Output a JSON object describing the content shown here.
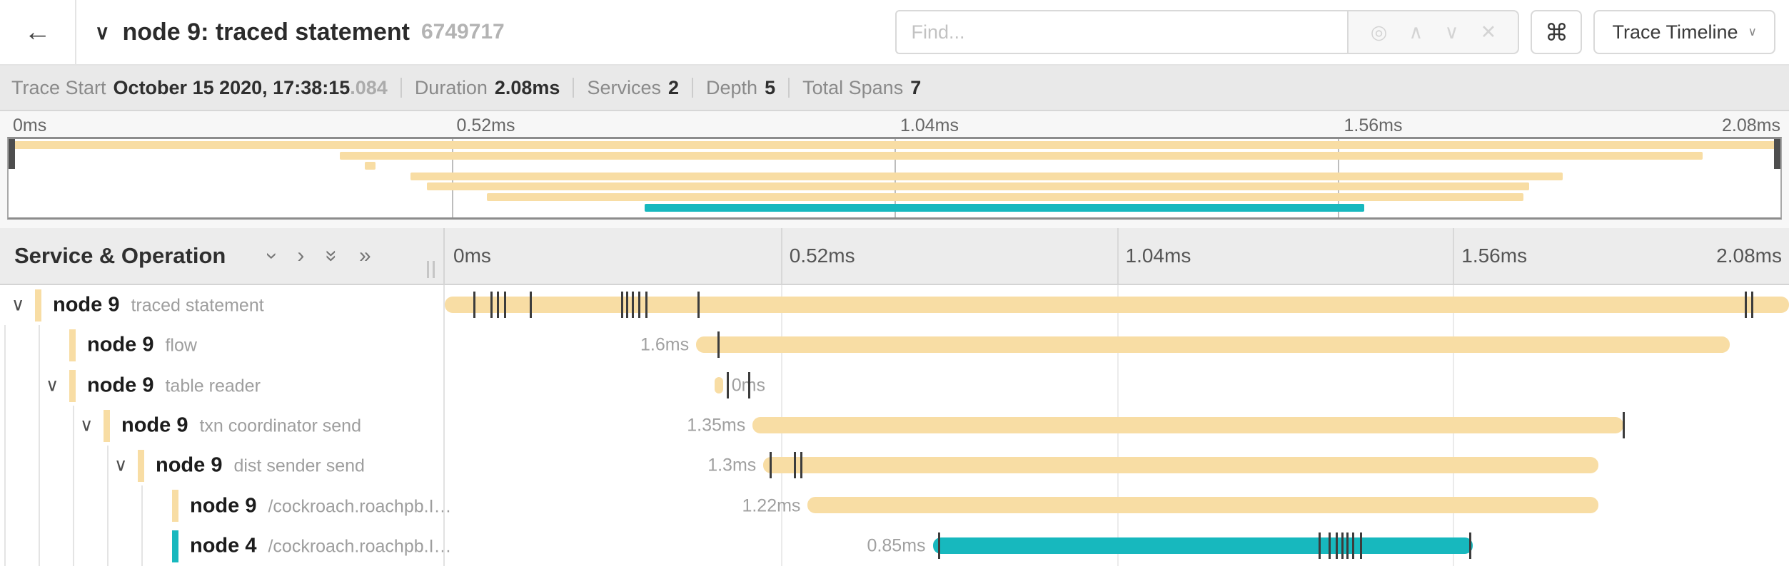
{
  "colors": {
    "tan": "#F8DDA4",
    "teal": "#17B8BE",
    "accent_dark": "#4e4e4e"
  },
  "header": {
    "back_icon": "←",
    "collapse_icon": "∨",
    "title": "node 9: traced statement",
    "trace_id_short": "6749717",
    "find": {
      "placeholder": "Find...",
      "locate_icon": "◎",
      "prev_icon": "∧",
      "next_icon": "∨",
      "clear_icon": "✕"
    },
    "shortcuts_button": "⌘",
    "view_dropdown": {
      "label": "Trace Timeline",
      "chevron": "∨"
    }
  },
  "summary": {
    "items": [
      {
        "label": "Trace Start",
        "value": "October 15 2020, 17:38:15",
        "suffix": ".084"
      },
      {
        "label": "Duration",
        "value": "2.08ms"
      },
      {
        "label": "Services",
        "value": "2"
      },
      {
        "label": "Depth",
        "value": "5"
      },
      {
        "label": "Total Spans",
        "value": "7"
      }
    ]
  },
  "minimap": {
    "axis_ticks": [
      "0ms",
      "0.52ms",
      "1.04ms",
      "1.56ms",
      "2.08ms"
    ],
    "spans": [
      {
        "start": 0.0,
        "end": 1.0,
        "color": "tan"
      },
      {
        "start": 0.187,
        "end": 0.956,
        "color": "tan"
      },
      {
        "start": 0.201,
        "end": 0.207,
        "color": "tan"
      },
      {
        "start": 0.227,
        "end": 0.877,
        "color": "tan"
      },
      {
        "start": 0.236,
        "end": 0.858,
        "color": "tan"
      },
      {
        "start": 0.27,
        "end": 0.855,
        "color": "tan"
      },
      {
        "start": 0.359,
        "end": 0.765,
        "color": "teal"
      }
    ]
  },
  "timeline": {
    "panel_title": "Service & Operation",
    "controls": [
      {
        "name": "collapse-one",
        "glyph": "›",
        "rotate": true
      },
      {
        "name": "expand-one",
        "glyph": "›",
        "rotate": false
      },
      {
        "name": "collapse-all",
        "glyph": "»",
        "rotate": true
      },
      {
        "name": "expand-all",
        "glyph": "»",
        "rotate": false
      }
    ],
    "axis_ticks": [
      "0ms",
      "0.52ms",
      "1.04ms",
      "1.56ms",
      "2.08ms"
    ],
    "rows": [
      {
        "service": "node 9",
        "operation": "traced statement",
        "depth": 0,
        "has_children": true,
        "color": "tan",
        "bar": {
          "start": 0.0,
          "end": 1.0
        },
        "duration_label": "",
        "label_side": "none",
        "ticks": [
          0.021,
          0.034,
          0.039,
          0.044,
          0.063,
          0.131,
          0.135,
          0.139,
          0.144,
          0.149,
          0.188,
          0.967,
          0.972
        ]
      },
      {
        "service": "node 9",
        "operation": "flow",
        "depth": 1,
        "has_children": false,
        "color": "tan",
        "bar": {
          "start": 0.187,
          "end": 0.956
        },
        "duration_label": "1.6ms",
        "label_side": "left",
        "ticks": [
          0.203
        ]
      },
      {
        "service": "node 9",
        "operation": "table reader",
        "depth": 1,
        "has_children": true,
        "color": "tan",
        "bar": {
          "start": 0.201,
          "end": 0.207
        },
        "duration_label": "0ms",
        "label_side": "right",
        "ticks": [
          0.21,
          0.2255
        ]
      },
      {
        "service": "node 9",
        "operation": "txn coordinator send",
        "depth": 2,
        "has_children": true,
        "color": "tan",
        "bar": {
          "start": 0.229,
          "end": 0.877
        },
        "duration_label": "1.35ms",
        "label_side": "left",
        "ticks": [
          0.8765
        ]
      },
      {
        "service": "node 9",
        "operation": "dist sender send",
        "depth": 3,
        "has_children": true,
        "color": "tan",
        "bar": {
          "start": 0.237,
          "end": 0.858
        },
        "duration_label": "1.3ms",
        "label_side": "left",
        "ticks": [
          0.2415,
          0.2595,
          0.2645
        ]
      },
      {
        "service": "node 9",
        "operation": "/cockroach.roachpb.I…",
        "depth": 4,
        "has_children": false,
        "color": "tan",
        "bar": {
          "start": 0.27,
          "end": 0.858
        },
        "duration_label": "1.22ms",
        "label_side": "left",
        "ticks": []
      },
      {
        "service": "node 4",
        "operation": "/cockroach.roachpb.I…",
        "depth": 4,
        "has_children": false,
        "color": "teal",
        "bar": {
          "start": 0.363,
          "end": 0.765
        },
        "duration_label": "0.85ms",
        "label_side": "left",
        "ticks": [
          0.367,
          0.65,
          0.6575,
          0.663,
          0.667,
          0.671,
          0.675,
          0.681,
          0.762
        ]
      }
    ]
  }
}
